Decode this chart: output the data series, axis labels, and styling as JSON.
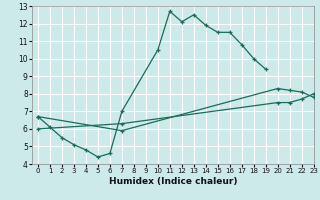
{
  "xlabel": "Humidex (Indice chaleur)",
  "xlim": [
    -0.5,
    23
  ],
  "ylim": [
    4,
    13
  ],
  "xticks": [
    0,
    1,
    2,
    3,
    4,
    5,
    6,
    7,
    8,
    9,
    10,
    11,
    12,
    13,
    14,
    15,
    16,
    17,
    18,
    19,
    20,
    21,
    22,
    23
  ],
  "yticks": [
    4,
    5,
    6,
    7,
    8,
    9,
    10,
    11,
    12,
    13
  ],
  "bg_color": "#cceaea",
  "grid_color": "#ffffff",
  "line_color": "#1a6b5a",
  "line1": {
    "x": [
      0,
      1,
      2,
      3,
      4,
      5,
      6,
      7,
      10,
      11,
      12,
      13,
      14,
      15,
      16,
      17,
      18,
      19
    ],
    "y": [
      6.7,
      6.1,
      5.5,
      5.1,
      4.8,
      4.4,
      4.6,
      7.0,
      10.5,
      12.7,
      12.1,
      12.5,
      11.9,
      11.5,
      11.5,
      10.8,
      10.0,
      9.4
    ]
  },
  "line2": {
    "x": [
      0,
      7,
      20,
      21,
      22,
      23
    ],
    "y": [
      6.7,
      5.9,
      8.3,
      8.2,
      8.1,
      7.8
    ]
  },
  "line3": {
    "x": [
      0,
      7,
      20,
      21,
      22,
      23
    ],
    "y": [
      6.0,
      6.3,
      7.5,
      7.5,
      7.7,
      8.0
    ]
  }
}
